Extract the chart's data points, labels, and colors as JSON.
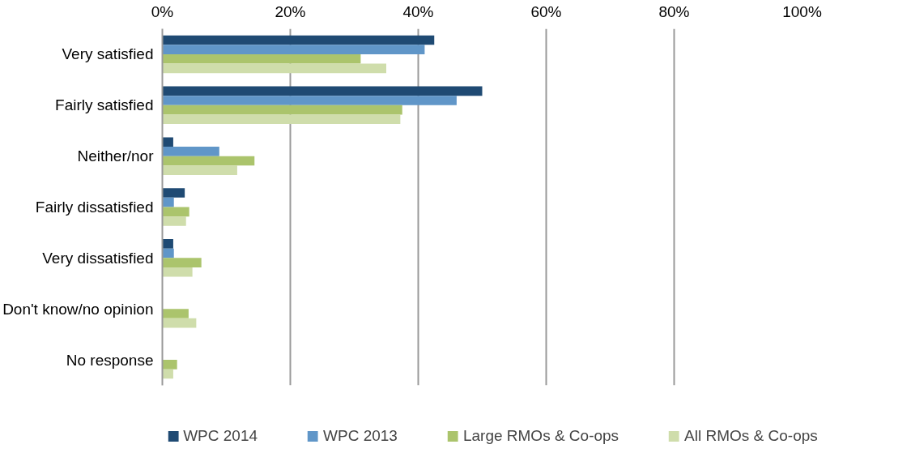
{
  "chart_data": {
    "type": "bar",
    "orientation": "horizontal",
    "categories": [
      "Very satisfied",
      "Fairly satisfied",
      "Neither/nor",
      "Fairly dissatisfied",
      "Very dissatisfied",
      "Don't know/no opinion",
      "No response"
    ],
    "series": [
      {
        "name": "WPC 2014",
        "color": "#1f4a73",
        "values": [
          42.5,
          50,
          1.7,
          3.5,
          1.7,
          null,
          null
        ]
      },
      {
        "name": "WPC 2013",
        "color": "#6096c8",
        "values": [
          41,
          46,
          8.9,
          1.8,
          1.8,
          null,
          null
        ]
      },
      {
        "name": "Large RMOs & Co-ops",
        "color": "#abc46c",
        "values": [
          31,
          37.5,
          14.4,
          4.2,
          6.1,
          4.1,
          2.3
        ]
      },
      {
        "name": "All RMOs & Co-ops",
        "color": "#cfddab",
        "values": [
          35,
          37.2,
          11.7,
          3.7,
          4.7,
          5.3,
          1.7
        ]
      }
    ],
    "xlim": [
      0,
      100
    ],
    "xticks": [
      {
        "value": 0,
        "label": "0%"
      },
      {
        "value": 20,
        "label": "20%"
      },
      {
        "value": 40,
        "label": "40%"
      },
      {
        "value": 60,
        "label": "60%"
      },
      {
        "value": 80,
        "label": "80%"
      },
      {
        "value": 100,
        "label": "100%"
      }
    ],
    "grid": "x",
    "legend": "bottom"
  }
}
